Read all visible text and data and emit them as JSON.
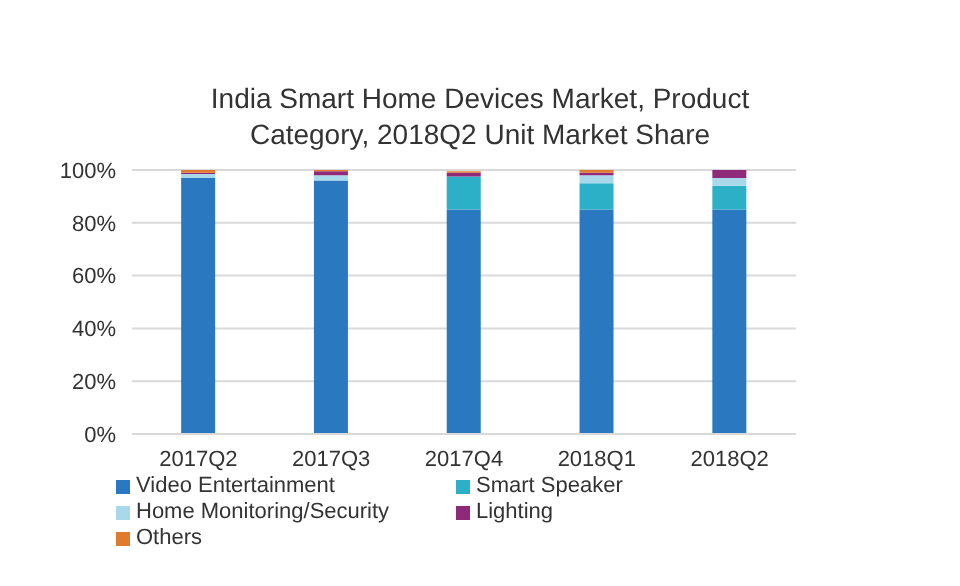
{
  "chart_data": {
    "type": "bar",
    "title": "India Smart Home Devices Market, Product Category, 2018Q2  Unit Market Share",
    "categories": [
      "2017Q2",
      "2017Q3",
      "2017Q4",
      "2018Q1",
      "2018Q2"
    ],
    "stacked": true,
    "series": [
      {
        "name": "Video Entertainment",
        "color": "#2a78c0",
        "values": [
          97,
          96,
          85,
          85,
          85
        ]
      },
      {
        "name": "Smart Speaker",
        "color": "#2cb0c7",
        "values": [
          0,
          0,
          12.5,
          10,
          9
        ]
      },
      {
        "name": "Home Monitoring/Security",
        "color": "#a9d8ea",
        "values": [
          1.5,
          2,
          null,
          3,
          3
        ]
      },
      {
        "name": "Lighting",
        "color": "#8e2a79",
        "values": [
          0.5,
          1.5,
          1.5,
          1,
          3
        ]
      },
      {
        "name": "Others",
        "color": "#e07a2e",
        "values": [
          1,
          0.5,
          0.5,
          1,
          0
        ]
      }
    ],
    "ylim": [
      0,
      100
    ],
    "yticks": [
      {
        "value": 0,
        "label": "0%"
      },
      {
        "value": 20,
        "label": "20%"
      },
      {
        "value": 40,
        "label": "40%"
      },
      {
        "value": 60,
        "label": "60%"
      },
      {
        "value": 80,
        "label": "80%"
      },
      {
        "value": 100,
        "label": "100%"
      }
    ],
    "grid": "y",
    "legend": "bottom"
  }
}
